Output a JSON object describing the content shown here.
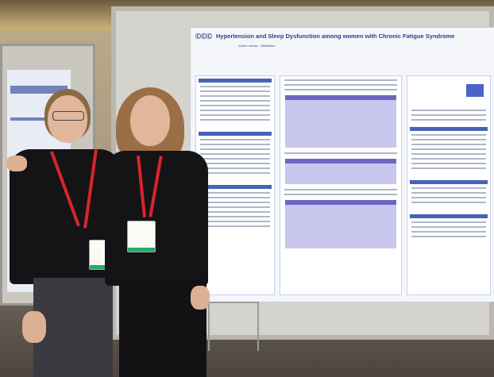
{
  "poster": {
    "logo": "ⒸⒸⒸ",
    "title": "Hypertension and Sleep Dysfunction among women with Chronic Fatigue Syndrome",
    "authors": "Author names · Affiliations"
  },
  "colors": {
    "poster_accent": "#2d3f8c",
    "table_header": "#6a66c4",
    "lanyard": "#d8242c",
    "badge_stripe": "#28a86a"
  }
}
